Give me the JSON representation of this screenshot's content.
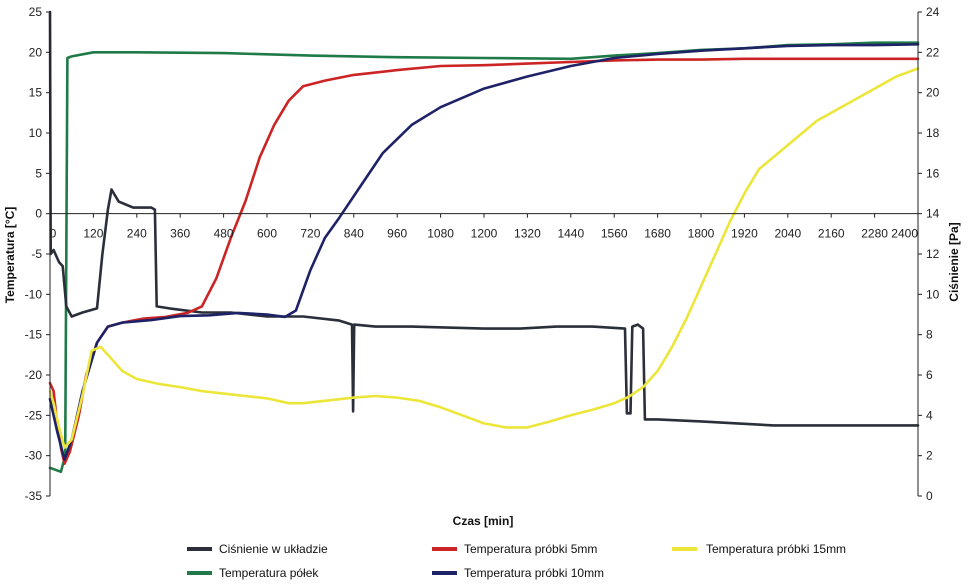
{
  "chart_data": {
    "type": "line",
    "title": "",
    "xlabel": "Czas [min]",
    "ylabel_left": "Temperatura [°C]",
    "ylabel_right": "Ciśnienie [Pa]",
    "xlim": [
      0,
      2400
    ],
    "ylim_left": [
      -35,
      25
    ],
    "ylim_right": [
      0,
      24
    ],
    "x_ticks": [
      "0",
      "120",
      "240",
      "360",
      "480",
      "600",
      "720",
      "840",
      "960",
      "1080",
      "1200",
      "1320",
      "1440",
      "1560",
      "1680",
      "1800",
      "1920",
      "2040",
      "2160",
      "2280",
      "2400"
    ],
    "y_left_ticks": [
      "-35",
      "-30",
      "-25",
      "-20",
      "-15",
      "-10",
      "-5",
      "0",
      "5",
      "10",
      "15",
      "20",
      "25"
    ],
    "y_right_ticks": [
      "0",
      "2",
      "4",
      "6",
      "8",
      "10",
      "12",
      "14",
      "16",
      "18",
      "20",
      "22",
      "24"
    ],
    "grid": false,
    "legend_placement": "bottom",
    "series": [
      {
        "name": "Ciśnienie w układzie",
        "axis": "right",
        "color": "#2b2f3a",
        "points": [
          [
            0,
            24
          ],
          [
            2,
            12
          ],
          [
            10,
            12.2
          ],
          [
            25,
            11.6
          ],
          [
            35,
            11.4
          ],
          [
            45,
            9.4
          ],
          [
            60,
            8.9
          ],
          [
            90,
            9.1
          ],
          [
            130,
            9.3
          ],
          [
            145,
            12
          ],
          [
            160,
            14.2
          ],
          [
            170,
            15.2
          ],
          [
            190,
            14.6
          ],
          [
            230,
            14.3
          ],
          [
            280,
            14.3
          ],
          [
            290,
            14.2
          ],
          [
            295,
            9.4
          ],
          [
            330,
            9.3
          ],
          [
            420,
            9.1
          ],
          [
            500,
            9.1
          ],
          [
            600,
            8.9
          ],
          [
            700,
            8.9
          ],
          [
            800,
            8.7
          ],
          [
            835,
            8.5
          ],
          [
            838,
            4.2
          ],
          [
            841,
            8.5
          ],
          [
            900,
            8.4
          ],
          [
            1000,
            8.4
          ],
          [
            1200,
            8.3
          ],
          [
            1300,
            8.3
          ],
          [
            1400,
            8.4
          ],
          [
            1500,
            8.4
          ],
          [
            1590,
            8.3
          ],
          [
            1595,
            4.1
          ],
          [
            1605,
            4.1
          ],
          [
            1610,
            8.4
          ],
          [
            1625,
            8.5
          ],
          [
            1640,
            8.3
          ],
          [
            1645,
            3.8
          ],
          [
            1680,
            3.8
          ],
          [
            1800,
            3.7
          ],
          [
            1900,
            3.6
          ],
          [
            2000,
            3.5
          ],
          [
            2100,
            3.5
          ],
          [
            2200,
            3.5
          ],
          [
            2300,
            3.5
          ],
          [
            2400,
            3.5
          ]
        ]
      },
      {
        "name": "Temperatura półek",
        "axis": "left",
        "color": "#1f7a48",
        "points": [
          [
            0,
            -31.5
          ],
          [
            30,
            -32
          ],
          [
            42,
            -30
          ],
          [
            48,
            19.3
          ],
          [
            60,
            19.5
          ],
          [
            120,
            20
          ],
          [
            240,
            20
          ],
          [
            480,
            19.9
          ],
          [
            720,
            19.6
          ],
          [
            960,
            19.4
          ],
          [
            1200,
            19.3
          ],
          [
            1440,
            19.2
          ],
          [
            1560,
            19.6
          ],
          [
            1680,
            19.9
          ],
          [
            1800,
            20.3
          ],
          [
            1920,
            20.5
          ],
          [
            2040,
            20.9
          ],
          [
            2160,
            21
          ],
          [
            2280,
            21.2
          ],
          [
            2400,
            21.2
          ]
        ]
      },
      {
        "name": "Temperatura próbki 5mm",
        "axis": "left",
        "color": "#cc2424",
        "points": [
          [
            0,
            -21
          ],
          [
            10,
            -22
          ],
          [
            20,
            -26
          ],
          [
            30,
            -29
          ],
          [
            40,
            -31
          ],
          [
            55,
            -29.5
          ],
          [
            80,
            -25
          ],
          [
            100,
            -20
          ],
          [
            130,
            -16
          ],
          [
            160,
            -14
          ],
          [
            200,
            -13.5
          ],
          [
            260,
            -13
          ],
          [
            320,
            -12.8
          ],
          [
            380,
            -12.3
          ],
          [
            420,
            -11.5
          ],
          [
            460,
            -8
          ],
          [
            500,
            -3
          ],
          [
            540,
            1.5
          ],
          [
            580,
            7
          ],
          [
            620,
            11
          ],
          [
            660,
            14
          ],
          [
            700,
            15.8
          ],
          [
            760,
            16.5
          ],
          [
            840,
            17.2
          ],
          [
            960,
            17.8
          ],
          [
            1080,
            18.3
          ],
          [
            1200,
            18.4
          ],
          [
            1320,
            18.6
          ],
          [
            1440,
            18.8
          ],
          [
            1560,
            19
          ],
          [
            1680,
            19.1
          ],
          [
            1800,
            19.1
          ],
          [
            1920,
            19.2
          ],
          [
            2040,
            19.2
          ],
          [
            2160,
            19.2
          ],
          [
            2280,
            19.2
          ],
          [
            2400,
            19.2
          ]
        ]
      },
      {
        "name": "Temperatura próbki 10mm",
        "axis": "left",
        "color": "#1e2266",
        "points": [
          [
            0,
            -23
          ],
          [
            20,
            -27
          ],
          [
            40,
            -30.5
          ],
          [
            60,
            -28
          ],
          [
            90,
            -22
          ],
          [
            130,
            -16
          ],
          [
            160,
            -14
          ],
          [
            200,
            -13.5
          ],
          [
            280,
            -13.2
          ],
          [
            360,
            -12.7
          ],
          [
            440,
            -12.6
          ],
          [
            520,
            -12.3
          ],
          [
            600,
            -12.5
          ],
          [
            650,
            -12.8
          ],
          [
            680,
            -12
          ],
          [
            720,
            -7
          ],
          [
            760,
            -3
          ],
          [
            800,
            -0.5
          ],
          [
            860,
            3.5
          ],
          [
            920,
            7.5
          ],
          [
            1000,
            11
          ],
          [
            1080,
            13.2
          ],
          [
            1200,
            15.5
          ],
          [
            1320,
            17
          ],
          [
            1440,
            18.3
          ],
          [
            1560,
            19.3
          ],
          [
            1680,
            19.8
          ],
          [
            1800,
            20.2
          ],
          [
            1920,
            20.5
          ],
          [
            2040,
            20.8
          ],
          [
            2160,
            20.9
          ],
          [
            2280,
            20.9
          ],
          [
            2400,
            21
          ]
        ]
      },
      {
        "name": "Temperatura próbki 15mm",
        "axis": "left",
        "color": "#ece63a",
        "points": [
          [
            0,
            -22
          ],
          [
            10,
            -23.5
          ],
          [
            25,
            -26.5
          ],
          [
            40,
            -29
          ],
          [
            60,
            -28
          ],
          [
            90,
            -22.5
          ],
          [
            115,
            -17
          ],
          [
            140,
            -16.5
          ],
          [
            170,
            -18
          ],
          [
            200,
            -19.5
          ],
          [
            240,
            -20.5
          ],
          [
            300,
            -21.1
          ],
          [
            360,
            -21.5
          ],
          [
            420,
            -22
          ],
          [
            480,
            -22.3
          ],
          [
            540,
            -22.6
          ],
          [
            600,
            -22.9
          ],
          [
            660,
            -23.5
          ],
          [
            700,
            -23.5
          ],
          [
            760,
            -23.2
          ],
          [
            840,
            -22.8
          ],
          [
            900,
            -22.6
          ],
          [
            960,
            -22.8
          ],
          [
            1020,
            -23.2
          ],
          [
            1080,
            -24
          ],
          [
            1140,
            -25
          ],
          [
            1200,
            -26
          ],
          [
            1260,
            -26.5
          ],
          [
            1320,
            -26.5
          ],
          [
            1380,
            -25.8
          ],
          [
            1440,
            -25
          ],
          [
            1500,
            -24.3
          ],
          [
            1560,
            -23.5
          ],
          [
            1600,
            -22.7
          ],
          [
            1640,
            -21.5
          ],
          [
            1680,
            -19.5
          ],
          [
            1720,
            -16.5
          ],
          [
            1760,
            -13
          ],
          [
            1800,
            -9
          ],
          [
            1840,
            -5
          ],
          [
            1880,
            -1
          ],
          [
            1920,
            2.5
          ],
          [
            1960,
            5.5
          ],
          [
            2040,
            8.5
          ],
          [
            2120,
            11.5
          ],
          [
            2200,
            13.5
          ],
          [
            2280,
            15.5
          ],
          [
            2340,
            17
          ],
          [
            2400,
            18
          ]
        ]
      }
    ]
  }
}
